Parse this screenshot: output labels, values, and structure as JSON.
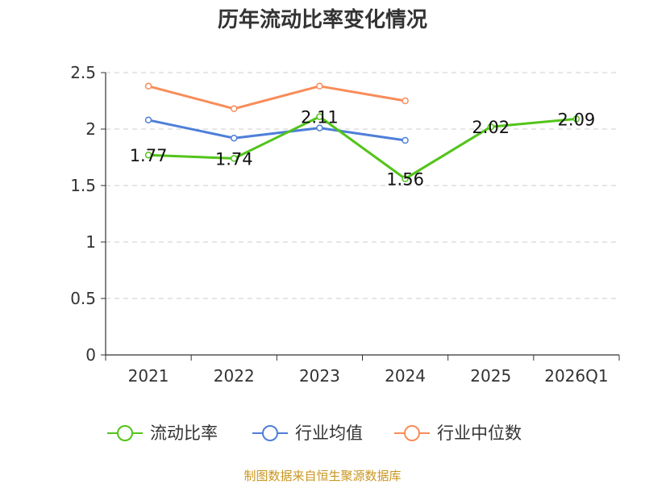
{
  "chart_data": {
    "type": "line",
    "title": "历年流动比率变化情况",
    "xlabel": "",
    "ylabel": "",
    "categories": [
      "2021",
      "2022",
      "2023",
      "2024",
      "2025",
      "2026Q1"
    ],
    "ylim": [
      0,
      2.5
    ],
    "yticks": [
      "0",
      "0.5",
      "1",
      "1.5",
      "2",
      "2.5"
    ],
    "grid": true,
    "legend_position": "bottom",
    "series": [
      {
        "name": "流动比率",
        "color": "#52c41a",
        "values": [
          1.77,
          1.74,
          2.11,
          1.56,
          2.02,
          2.09
        ],
        "labels": [
          "1.77",
          "1.74",
          "2.11",
          "1.56",
          "2.02",
          "2.09"
        ]
      },
      {
        "name": "行业均值",
        "color": "#4e7fd8",
        "values": [
          2.08,
          1.92,
          2.01,
          1.9,
          null,
          null
        ]
      },
      {
        "name": "行业中位数",
        "color": "#f98c5a",
        "values": [
          2.38,
          2.18,
          2.38,
          2.25,
          null,
          null
        ]
      }
    ]
  },
  "footer": {
    "source": "制图数据来自恒生聚源数据库"
  }
}
